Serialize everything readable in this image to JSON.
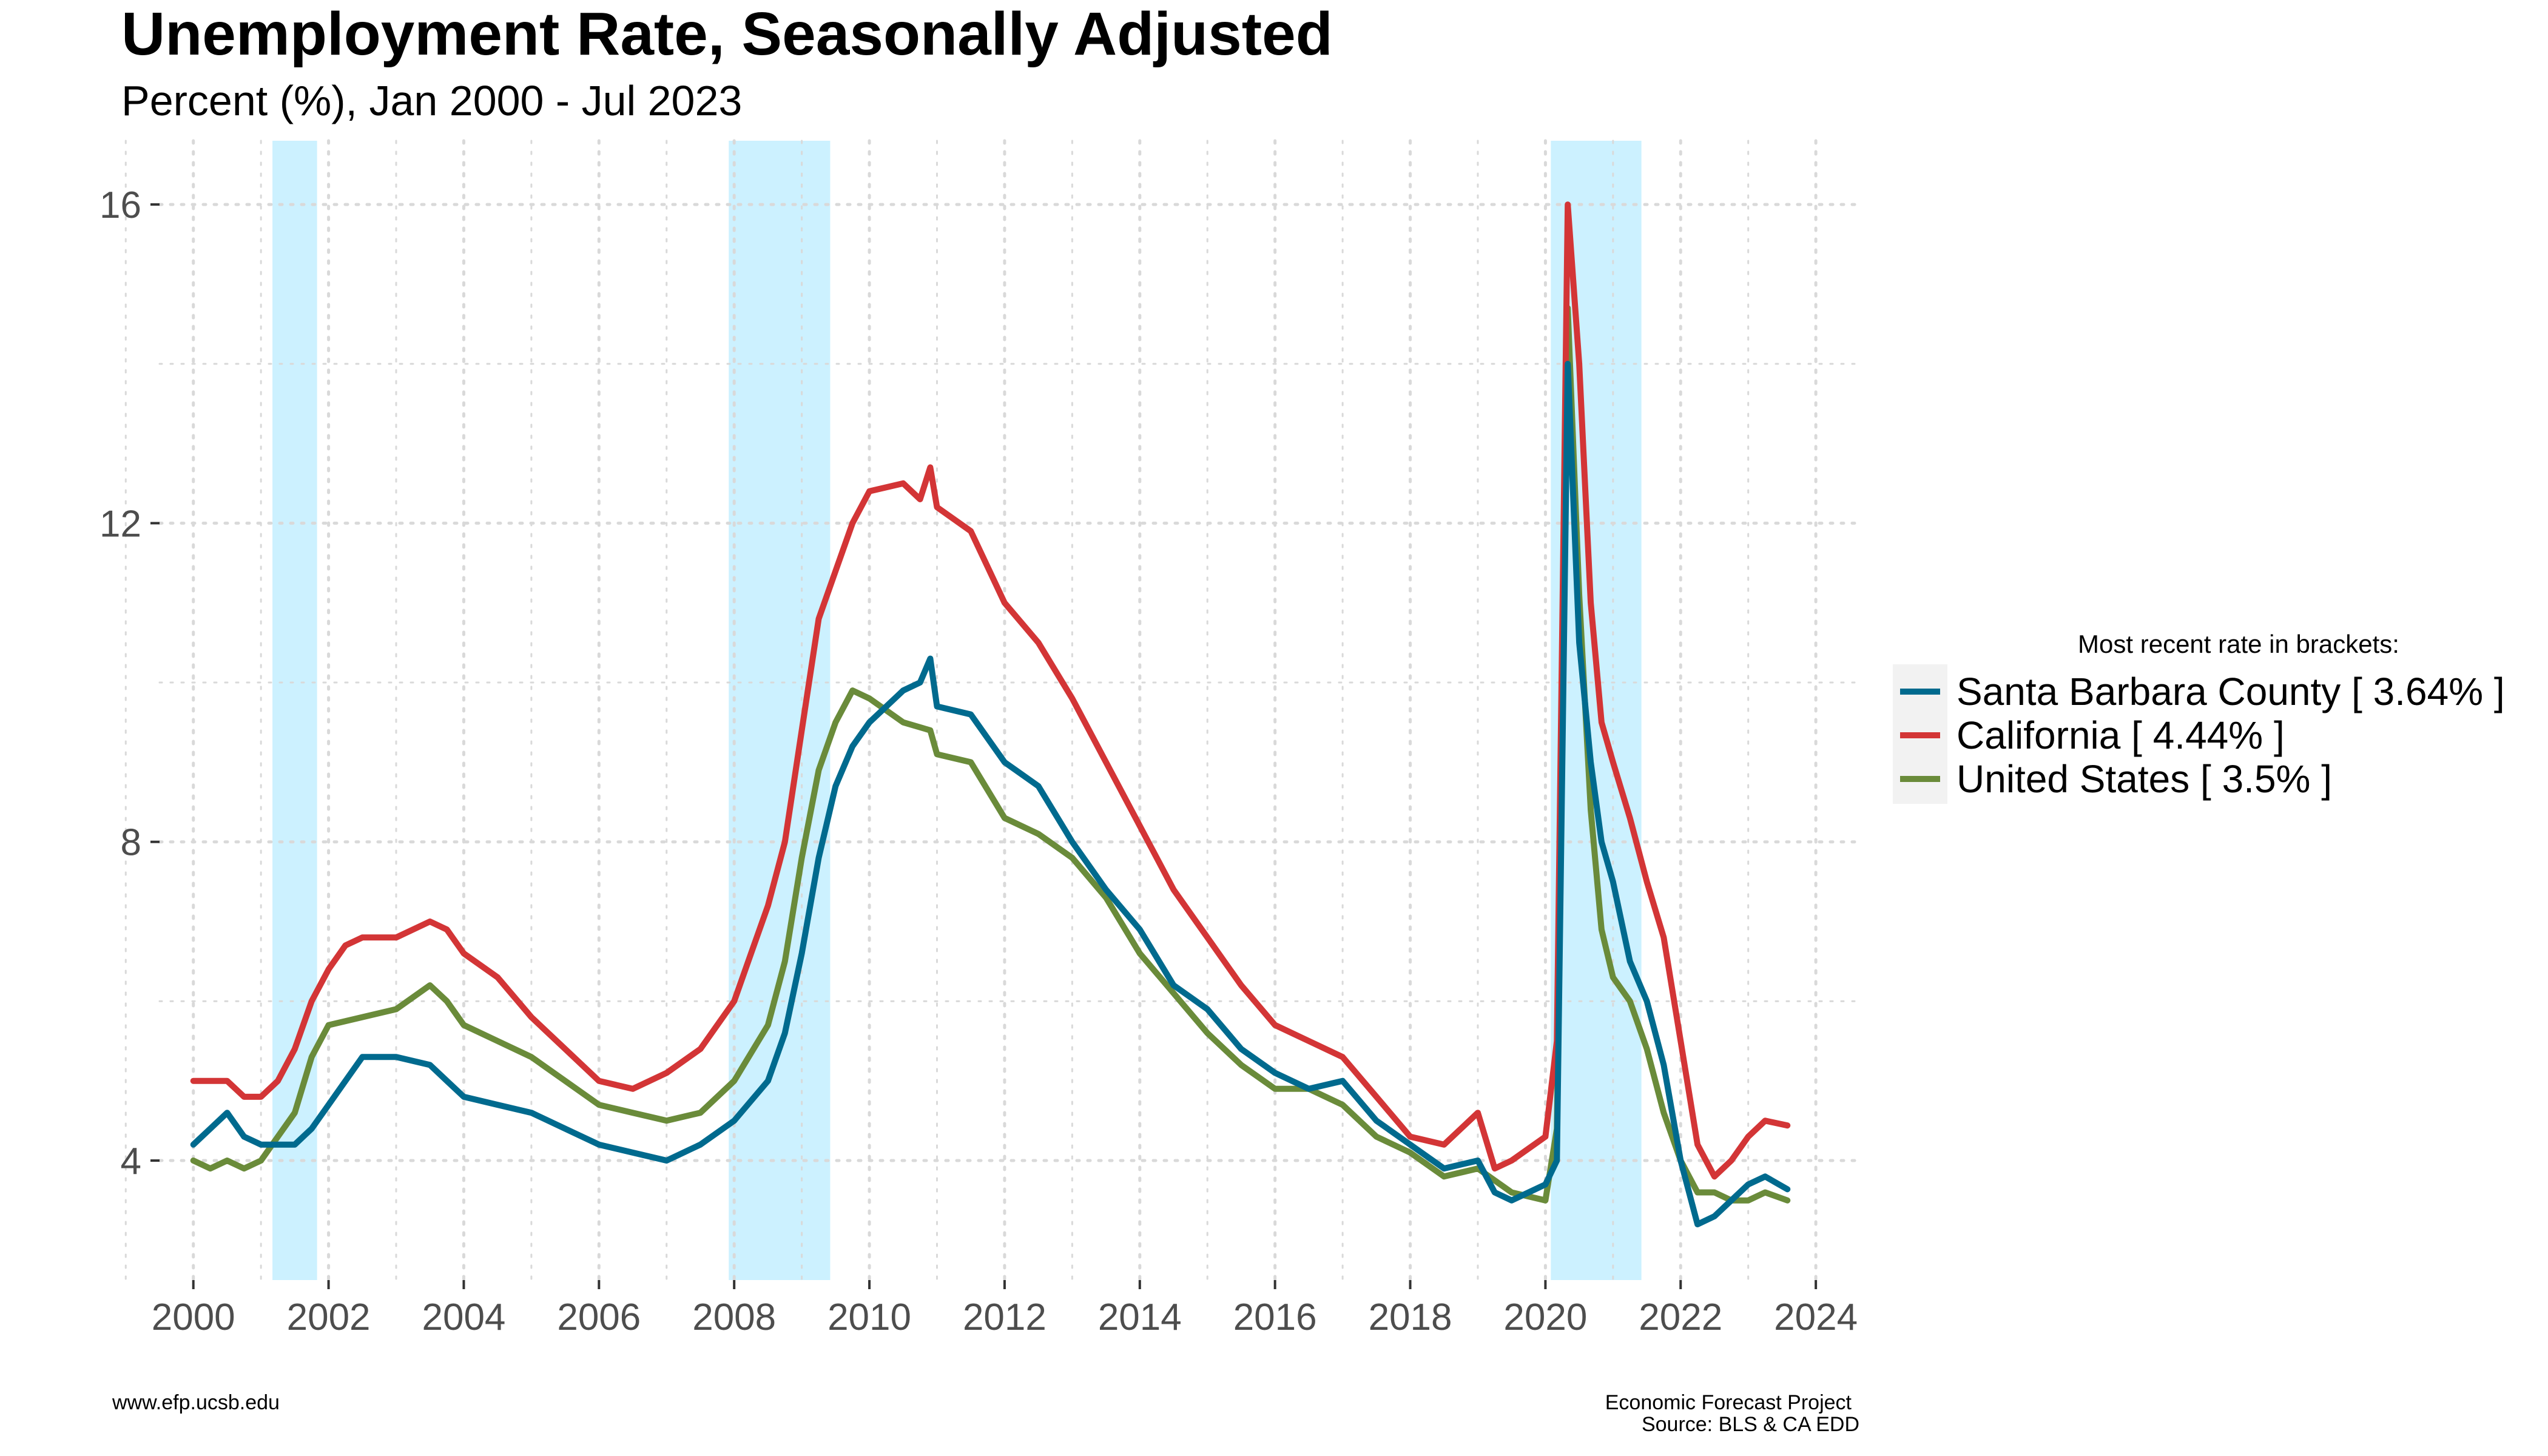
{
  "page": {
    "title": "Unemployment Rate, Seasonally Adjusted",
    "subtitle": "Percent (%), Jan 2000 - Jul 2023",
    "caption_left": "www.efp.ucsb.edu",
    "caption_right_1": "Economic Forecast Project",
    "caption_right_2": "Source: BLS & CA EDD"
  },
  "colors": {
    "recession": "#ccf1ff",
    "grid": "#d9d9d9",
    "santa_barbara": "#006a8e",
    "california": "#d33536",
    "united_states": "#6a8b3a"
  },
  "chart_data": {
    "type": "line",
    "title": "Unemployment Rate, Seasonally Adjusted",
    "subtitle": "Percent (%), Jan 2000 - Jul 2023",
    "xlabel": "",
    "ylabel": "",
    "xlim": [
      1999.5,
      2024.6
    ],
    "ylim": [
      2.5,
      16.8
    ],
    "x_ticks": [
      2000,
      2002,
      2004,
      2006,
      2008,
      2010,
      2012,
      2014,
      2016,
      2018,
      2020,
      2022,
      2024
    ],
    "x_tick_labels": [
      "2000",
      "2002",
      "2004",
      "2006",
      "2008",
      "2010",
      "2012",
      "2014",
      "2016",
      "2018",
      "2020",
      "2022",
      "2024"
    ],
    "y_ticks": [
      4,
      8,
      12,
      16
    ],
    "y_tick_labels": [
      "4",
      "8",
      "12",
      "16"
    ],
    "grid": true,
    "recessions": [
      {
        "start": 2001.17,
        "end": 2001.83
      },
      {
        "start": 2007.92,
        "end": 2009.42
      },
      {
        "start": 2020.08,
        "end": 2021.42
      }
    ],
    "legend": {
      "title": "Most recent rate in brackets:",
      "position": "right"
    },
    "series": [
      {
        "name": "Santa Barbara County [ 3.64% ]",
        "color_key": "santa_barbara",
        "points": [
          [
            2000.0,
            4.2
          ],
          [
            2000.25,
            4.4
          ],
          [
            2000.5,
            4.6
          ],
          [
            2000.75,
            4.3
          ],
          [
            2001.0,
            4.2
          ],
          [
            2001.5,
            4.2
          ],
          [
            2001.75,
            4.4
          ],
          [
            2002.0,
            4.7
          ],
          [
            2002.25,
            5.0
          ],
          [
            2002.5,
            5.3
          ],
          [
            2003.0,
            5.3
          ],
          [
            2003.5,
            5.2
          ],
          [
            2003.75,
            5.0
          ],
          [
            2004.0,
            4.8
          ],
          [
            2004.5,
            4.7
          ],
          [
            2005.0,
            4.6
          ],
          [
            2005.5,
            4.4
          ],
          [
            2006.0,
            4.2
          ],
          [
            2006.5,
            4.1
          ],
          [
            2007.0,
            4.0
          ],
          [
            2007.5,
            4.2
          ],
          [
            2008.0,
            4.5
          ],
          [
            2008.5,
            5.0
          ],
          [
            2008.75,
            5.6
          ],
          [
            2009.0,
            6.6
          ],
          [
            2009.25,
            7.8
          ],
          [
            2009.5,
            8.7
          ],
          [
            2009.75,
            9.2
          ],
          [
            2010.0,
            9.5
          ],
          [
            2010.5,
            9.9
          ],
          [
            2010.75,
            10.0
          ],
          [
            2010.9,
            10.3
          ],
          [
            2011.0,
            9.7
          ],
          [
            2011.5,
            9.6
          ],
          [
            2012.0,
            9.0
          ],
          [
            2012.5,
            8.7
          ],
          [
            2013.0,
            8.0
          ],
          [
            2013.5,
            7.4
          ],
          [
            2014.0,
            6.9
          ],
          [
            2014.5,
            6.2
          ],
          [
            2015.0,
            5.9
          ],
          [
            2015.5,
            5.4
          ],
          [
            2016.0,
            5.1
          ],
          [
            2016.5,
            4.9
          ],
          [
            2017.0,
            5.0
          ],
          [
            2017.5,
            4.5
          ],
          [
            2018.0,
            4.2
          ],
          [
            2018.5,
            3.9
          ],
          [
            2019.0,
            4.0
          ],
          [
            2019.25,
            3.6
          ],
          [
            2019.5,
            3.5
          ],
          [
            2020.0,
            3.7
          ],
          [
            2020.17,
            4.0
          ],
          [
            2020.33,
            14.0
          ],
          [
            2020.5,
            10.5
          ],
          [
            2020.67,
            9.0
          ],
          [
            2020.83,
            8.0
          ],
          [
            2021.0,
            7.5
          ],
          [
            2021.25,
            6.5
          ],
          [
            2021.5,
            6.0
          ],
          [
            2021.75,
            5.2
          ],
          [
            2022.0,
            4.0
          ],
          [
            2022.25,
            3.2
          ],
          [
            2022.5,
            3.3
          ],
          [
            2022.75,
            3.5
          ],
          [
            2023.0,
            3.7
          ],
          [
            2023.25,
            3.8
          ],
          [
            2023.58,
            3.64
          ]
        ]
      },
      {
        "name": "California [ 4.44% ]",
        "color_key": "california",
        "points": [
          [
            2000.0,
            5.0
          ],
          [
            2000.5,
            5.0
          ],
          [
            2000.75,
            4.8
          ],
          [
            2001.0,
            4.8
          ],
          [
            2001.25,
            5.0
          ],
          [
            2001.5,
            5.4
          ],
          [
            2001.75,
            6.0
          ],
          [
            2002.0,
            6.4
          ],
          [
            2002.25,
            6.7
          ],
          [
            2002.5,
            6.8
          ],
          [
            2003.0,
            6.8
          ],
          [
            2003.5,
            7.0
          ],
          [
            2003.75,
            6.9
          ],
          [
            2004.0,
            6.6
          ],
          [
            2004.5,
            6.3
          ],
          [
            2005.0,
            5.8
          ],
          [
            2005.5,
            5.4
          ],
          [
            2006.0,
            5.0
          ],
          [
            2006.5,
            4.9
          ],
          [
            2007.0,
            5.1
          ],
          [
            2007.5,
            5.4
          ],
          [
            2008.0,
            6.0
          ],
          [
            2008.25,
            6.6
          ],
          [
            2008.5,
            7.2
          ],
          [
            2008.75,
            8.0
          ],
          [
            2009.0,
            9.4
          ],
          [
            2009.25,
            10.8
          ],
          [
            2009.5,
            11.4
          ],
          [
            2009.75,
            12.0
          ],
          [
            2010.0,
            12.4
          ],
          [
            2010.5,
            12.5
          ],
          [
            2010.75,
            12.3
          ],
          [
            2010.9,
            12.7
          ],
          [
            2011.0,
            12.2
          ],
          [
            2011.5,
            11.9
          ],
          [
            2012.0,
            11.0
          ],
          [
            2012.5,
            10.5
          ],
          [
            2013.0,
            9.8
          ],
          [
            2013.5,
            9.0
          ],
          [
            2014.0,
            8.2
          ],
          [
            2014.5,
            7.4
          ],
          [
            2015.0,
            6.8
          ],
          [
            2015.5,
            6.2
          ],
          [
            2016.0,
            5.7
          ],
          [
            2016.5,
            5.5
          ],
          [
            2017.0,
            5.3
          ],
          [
            2017.5,
            4.8
          ],
          [
            2018.0,
            4.3
          ],
          [
            2018.5,
            4.2
          ],
          [
            2019.0,
            4.6
          ],
          [
            2019.25,
            3.9
          ],
          [
            2019.5,
            4.0
          ],
          [
            2020.0,
            4.3
          ],
          [
            2020.17,
            5.5
          ],
          [
            2020.33,
            16.0
          ],
          [
            2020.5,
            14.0
          ],
          [
            2020.67,
            11.0
          ],
          [
            2020.83,
            9.5
          ],
          [
            2021.0,
            9.0
          ],
          [
            2021.25,
            8.3
          ],
          [
            2021.5,
            7.5
          ],
          [
            2021.75,
            6.8
          ],
          [
            2022.0,
            5.5
          ],
          [
            2022.25,
            4.2
          ],
          [
            2022.5,
            3.8
          ],
          [
            2022.75,
            4.0
          ],
          [
            2023.0,
            4.3
          ],
          [
            2023.25,
            4.5
          ],
          [
            2023.58,
            4.44
          ]
        ]
      },
      {
        "name": "United States [ 3.5% ]",
        "color_key": "united_states",
        "points": [
          [
            2000.0,
            4.0
          ],
          [
            2000.25,
            3.9
          ],
          [
            2000.5,
            4.0
          ],
          [
            2000.75,
            3.9
          ],
          [
            2001.0,
            4.0
          ],
          [
            2001.25,
            4.3
          ],
          [
            2001.5,
            4.6
          ],
          [
            2001.75,
            5.3
          ],
          [
            2002.0,
            5.7
          ],
          [
            2002.5,
            5.8
          ],
          [
            2003.0,
            5.9
          ],
          [
            2003.5,
            6.2
          ],
          [
            2003.75,
            6.0
          ],
          [
            2004.0,
            5.7
          ],
          [
            2004.5,
            5.5
          ],
          [
            2005.0,
            5.3
          ],
          [
            2005.5,
            5.0
          ],
          [
            2006.0,
            4.7
          ],
          [
            2006.5,
            4.6
          ],
          [
            2007.0,
            4.5
          ],
          [
            2007.5,
            4.6
          ],
          [
            2008.0,
            5.0
          ],
          [
            2008.5,
            5.7
          ],
          [
            2008.75,
            6.5
          ],
          [
            2009.0,
            7.8
          ],
          [
            2009.25,
            8.9
          ],
          [
            2009.5,
            9.5
          ],
          [
            2009.75,
            9.9
          ],
          [
            2010.0,
            9.8
          ],
          [
            2010.5,
            9.5
          ],
          [
            2010.9,
            9.4
          ],
          [
            2011.0,
            9.1
          ],
          [
            2011.5,
            9.0
          ],
          [
            2012.0,
            8.3
          ],
          [
            2012.5,
            8.1
          ],
          [
            2013.0,
            7.8
          ],
          [
            2013.5,
            7.3
          ],
          [
            2014.0,
            6.6
          ],
          [
            2014.5,
            6.1
          ],
          [
            2015.0,
            5.6
          ],
          [
            2015.5,
            5.2
          ],
          [
            2016.0,
            4.9
          ],
          [
            2016.5,
            4.9
          ],
          [
            2017.0,
            4.7
          ],
          [
            2017.5,
            4.3
          ],
          [
            2018.0,
            4.1
          ],
          [
            2018.5,
            3.8
          ],
          [
            2019.0,
            3.9
          ],
          [
            2019.5,
            3.6
          ],
          [
            2020.0,
            3.5
          ],
          [
            2020.17,
            4.4
          ],
          [
            2020.33,
            14.7
          ],
          [
            2020.5,
            11.1
          ],
          [
            2020.67,
            8.4
          ],
          [
            2020.83,
            6.9
          ],
          [
            2021.0,
            6.3
          ],
          [
            2021.25,
            6.0
          ],
          [
            2021.5,
            5.4
          ],
          [
            2021.75,
            4.6
          ],
          [
            2022.0,
            4.0
          ],
          [
            2022.25,
            3.6
          ],
          [
            2022.5,
            3.6
          ],
          [
            2022.75,
            3.5
          ],
          [
            2023.0,
            3.5
          ],
          [
            2023.25,
            3.6
          ],
          [
            2023.58,
            3.5
          ]
        ]
      }
    ]
  }
}
